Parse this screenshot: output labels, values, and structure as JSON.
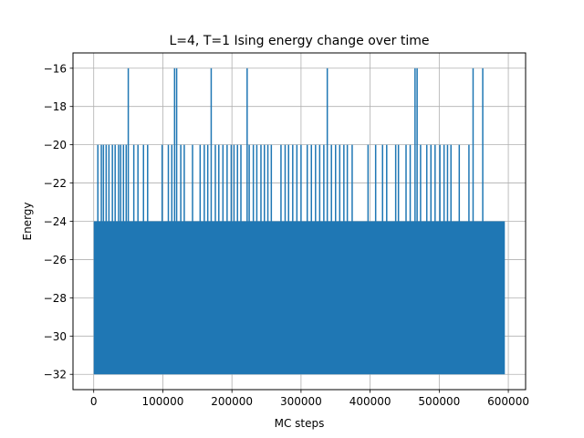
{
  "chart_data": {
    "type": "line",
    "title": "L=4, T=1 Ising energy change over time",
    "xlabel": "MC steps",
    "ylabel": "Energy",
    "xlim": [
      -30000,
      625000
    ],
    "ylim": [
      -32.8,
      -15.2
    ],
    "grid": true,
    "x_ticks": [
      0,
      100000,
      200000,
      300000,
      400000,
      500000,
      600000
    ],
    "x_tick_labels": [
      "0",
      "100000",
      "200000",
      "300000",
      "400000",
      "500000",
      "600000"
    ],
    "y_ticks": [
      -32,
      -30,
      -28,
      -26,
      -24,
      -22,
      -20,
      -18,
      -16
    ],
    "y_tick_labels": [
      "−32",
      "−30",
      "−28",
      "−26",
      "−24",
      "−22",
      "−20",
      "−18",
      "−16"
    ],
    "series": [
      {
        "name": "Energy",
        "color": "#1f77b4",
        "x_range": [
          0,
          595000
        ],
        "dense_band": [
          -32,
          -24
        ],
        "spikes_to_minus_16": [
          50000,
          117000,
          120000,
          170000,
          222000,
          338000,
          465000,
          468000,
          549000,
          563000
        ],
        "spikes_to_minus_20": [
          6000,
          11000,
          14000,
          18000,
          22000,
          27000,
          31000,
          36000,
          39000,
          43000,
          47000,
          58000,
          64000,
          72000,
          78000,
          99000,
          108000,
          113000,
          126000,
          131000,
          143000,
          154000,
          160000,
          165000,
          176000,
          181000,
          187000,
          193000,
          199000,
          203000,
          208000,
          213000,
          225000,
          231000,
          236000,
          242000,
          247000,
          252000,
          257000,
          271000,
          277000,
          282000,
          288000,
          294000,
          300000,
          309000,
          315000,
          321000,
          327000,
          333000,
          344000,
          350000,
          356000,
          362000,
          367000,
          374000,
          397000,
          408000,
          418000,
          424000,
          437000,
          441000,
          452000,
          458000,
          473000,
          482000,
          488000,
          494000,
          501000,
          507000,
          512000,
          517000,
          529000,
          543000
        ]
      }
    ]
  }
}
